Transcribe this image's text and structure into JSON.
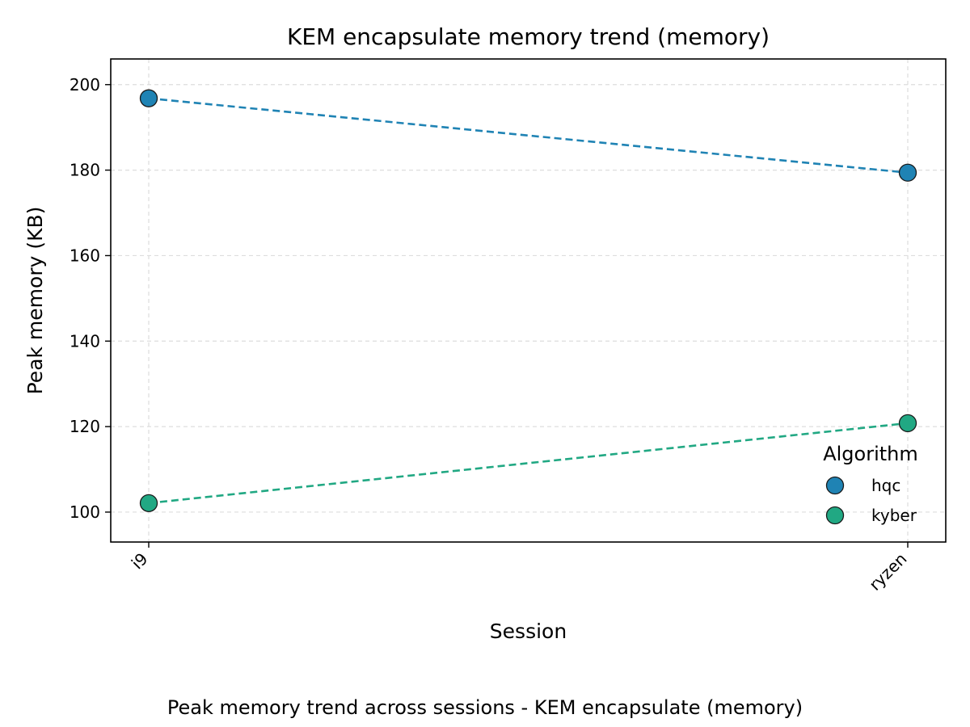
{
  "caption": "Peak memory trend across sessions - KEM encapsulate (memory)",
  "chart_data": {
    "type": "line",
    "title": "KEM encapsulate memory trend (memory)",
    "xlabel": "Session",
    "ylabel": "Peak memory (KB)",
    "categories": [
      "i9",
      "ryzen"
    ],
    "series": [
      {
        "name": "hqc",
        "values": [
          196.8,
          179.4
        ],
        "color": "#1f83b4"
      },
      {
        "name": "kyber",
        "values": [
          102.1,
          120.8
        ],
        "color": "#21a883"
      }
    ],
    "ylim": [
      93,
      206
    ],
    "yticks": [
      100,
      120,
      140,
      160,
      180,
      200
    ],
    "grid": true,
    "line_style": "dashed",
    "legend": {
      "title": "Algorithm",
      "placement": "lower-right"
    }
  }
}
